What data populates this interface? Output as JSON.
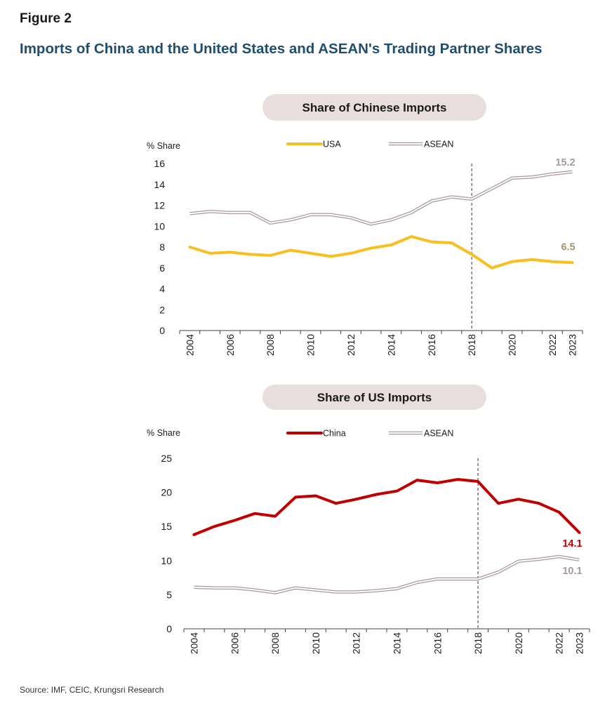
{
  "figure_label": "Figure 2",
  "figure_title": "Imports of China and the United States and ASEAN's Trading Partner Shares",
  "source": "Source: IMF, CEIC, Krungsri Research",
  "colors": {
    "usa": "#f9bf1e",
    "china": "#c00000",
    "asean_line": "#a89a98",
    "pill_bg": "#e9dede",
    "end_label_asean": "#a89a98",
    "end_label_usa": "#a89070",
    "end_label_china": "#c00000"
  },
  "chart_data": [
    {
      "type": "line",
      "title": "Share of Chinese Imports",
      "ylabel": "% Share",
      "xlabel": "",
      "ylim": [
        0,
        16
      ],
      "yticks": [
        0,
        2,
        4,
        6,
        8,
        10,
        12,
        14,
        16
      ],
      "x": [
        2004,
        2005,
        2006,
        2007,
        2008,
        2009,
        2010,
        2011,
        2012,
        2013,
        2014,
        2015,
        2016,
        2017,
        2018,
        2019,
        2020,
        2021,
        2022,
        2023
      ],
      "xtick_labels": [
        "2004",
        "2006",
        "2008",
        "2010",
        "2012",
        "2014",
        "2016",
        "2018",
        "2020",
        "2022",
        "2023"
      ],
      "vline_x": 2018,
      "legend_position": "top",
      "series": [
        {
          "name": "USA",
          "style": "solid",
          "values": [
            8.0,
            7.4,
            7.5,
            7.3,
            7.2,
            7.7,
            7.4,
            7.1,
            7.4,
            7.9,
            8.2,
            9.0,
            8.5,
            8.4,
            7.3,
            6.0,
            6.6,
            6.8,
            6.6,
            6.5
          ],
          "end_label": "6.5"
        },
        {
          "name": "ASEAN",
          "style": "double",
          "values": [
            11.2,
            11.4,
            11.3,
            11.3,
            10.3,
            10.6,
            11.1,
            11.1,
            10.8,
            10.2,
            10.6,
            11.3,
            12.4,
            12.8,
            12.6,
            13.6,
            14.6,
            14.7,
            15.0,
            15.2
          ],
          "end_label": "15.2"
        }
      ]
    },
    {
      "type": "line",
      "title": "Share of US Imports",
      "ylabel": "% Share",
      "xlabel": "",
      "ylim": [
        0,
        25
      ],
      "yticks": [
        0,
        5,
        10,
        15,
        20,
        25
      ],
      "x": [
        2004,
        2005,
        2006,
        2007,
        2008,
        2009,
        2010,
        2011,
        2012,
        2013,
        2014,
        2015,
        2016,
        2017,
        2018,
        2019,
        2020,
        2021,
        2022,
        2023
      ],
      "xtick_labels": [
        "2004",
        "2006",
        "2008",
        "2010",
        "2012",
        "2014",
        "2016",
        "2018",
        "2020",
        "2022",
        "2023"
      ],
      "vline_x": 2018,
      "legend_position": "top",
      "series": [
        {
          "name": "China",
          "style": "solid",
          "values": [
            13.8,
            15.0,
            15.9,
            16.9,
            16.5,
            19.3,
            19.5,
            18.4,
            19.0,
            19.7,
            20.2,
            21.8,
            21.4,
            21.9,
            21.6,
            18.4,
            19.0,
            18.4,
            17.1,
            14.1
          ],
          "end_label": "14.1"
        },
        {
          "name": "ASEAN",
          "style": "double",
          "values": [
            6.1,
            6.0,
            6.0,
            5.7,
            5.3,
            6.0,
            5.7,
            5.4,
            5.4,
            5.6,
            5.9,
            6.8,
            7.3,
            7.3,
            7.3,
            8.3,
            9.9,
            10.2,
            10.6,
            10.1
          ],
          "end_label": "10.1"
        }
      ]
    }
  ]
}
